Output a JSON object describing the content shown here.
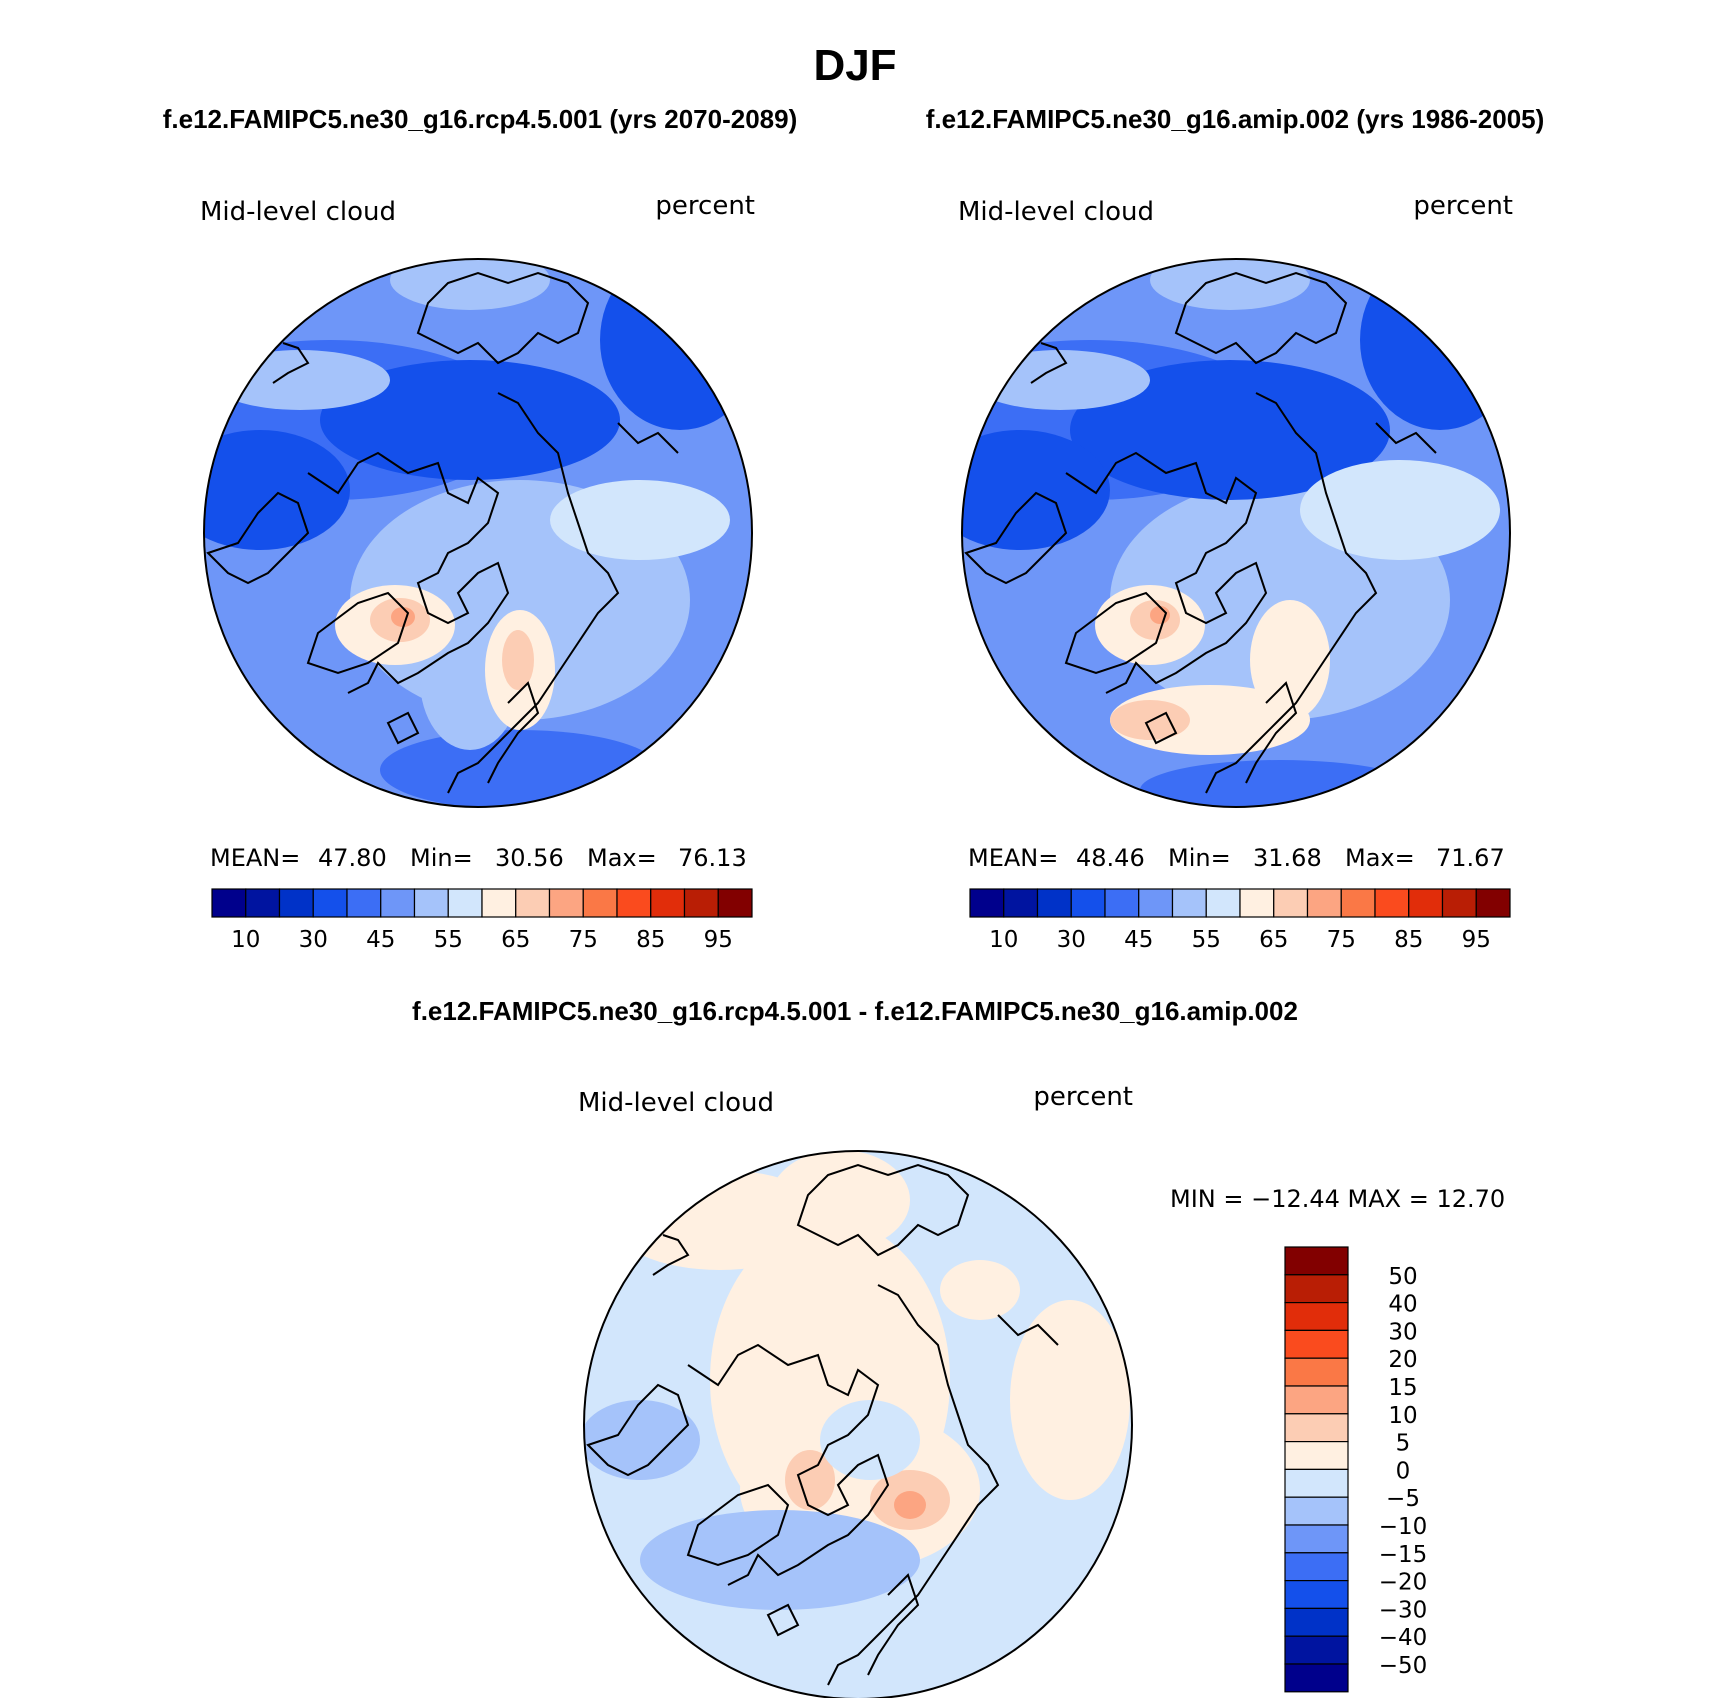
{
  "page": {
    "title": "DJF",
    "subtitle_left": "f.e12.FAMIPC5.ne30_g16.rcp4.5.001 (yrs 2070-2089)",
    "subtitle_right": "f.e12.FAMIPC5.ne30_g16.amip.002 (yrs 1986-2005)",
    "diff_title": "f.e12.FAMIPC5.ne30_g16.rcp4.5.001 - f.e12.FAMIPC5.ne30_g16.amip.002"
  },
  "panels": [
    {
      "id": "rcp45",
      "variable": "Mid-level cloud",
      "units": "percent",
      "stats_mean_label": "MEAN=",
      "stats_mean": "47.80",
      "stats_min_label": "Min=",
      "stats_min": "30.56",
      "stats_max_label": "Max=",
      "stats_max": "76.13"
    },
    {
      "id": "amip",
      "variable": "Mid-level cloud",
      "units": "percent",
      "stats_mean_label": "MEAN=",
      "stats_mean": "48.46",
      "stats_min_label": "Min=",
      "stats_min": "31.68",
      "stats_max_label": "Max=",
      "stats_max": "71.67"
    },
    {
      "id": "diff",
      "variable": "Mid-level cloud",
      "units": "percent",
      "stats_text": "MIN = −12.44 MAX =  12.70"
    }
  ],
  "colorbar_abs": {
    "colors": [
      "#00008c",
      "#0014a0",
      "#0032c8",
      "#1450eb",
      "#3c6ef5",
      "#6e96f8",
      "#a5c3fa",
      "#d2e6fc",
      "#fff0e1",
      "#fccdb4",
      "#fca582",
      "#fa7846",
      "#fa4b1e",
      "#e12d0a",
      "#b91e05",
      "#820000"
    ],
    "labels": [
      "10",
      "30",
      "45",
      "55",
      "65",
      "75",
      "85",
      "95"
    ]
  },
  "colorbar_diff": {
    "colors": [
      "#00008c",
      "#0014a0",
      "#0032c8",
      "#1450eb",
      "#3c6ef5",
      "#6e96f8",
      "#a5c3fa",
      "#d2e6fc",
      "#fff0e1",
      "#fccdb4",
      "#fca582",
      "#fa7846",
      "#fa4b1e",
      "#e12d0a",
      "#b91e05",
      "#820000"
    ],
    "labels": [
      "−50",
      "−40",
      "−30",
      "−20",
      "−15",
      "−10",
      "−5",
      "0",
      "5",
      "10",
      "15",
      "20",
      "30",
      "40",
      "50"
    ]
  }
}
